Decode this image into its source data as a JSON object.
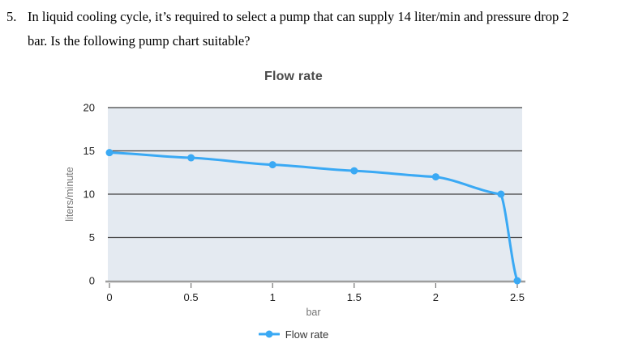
{
  "question": {
    "number": "5.",
    "lines": [
      "In liquid cooling cycle, it’s required to select a pump that can supply 14 liter/min and pressure drop 2",
      "bar. Is the following pump chart suitable?"
    ]
  },
  "chart": {
    "title": "Flow rate",
    "legend": [
      {
        "label": "Flow rate",
        "color": "#3aa9f4"
      }
    ]
  },
  "chart_data": {
    "type": "line",
    "title": "Flow rate",
    "xlabel": "bar",
    "ylabel": "liters/minute",
    "x": [
      0,
      0.5,
      1,
      1.5,
      2,
      2.4,
      2.5
    ],
    "series": [
      {
        "name": "Flow rate",
        "values": [
          14.8,
          14.2,
          13.4,
          12.7,
          12,
          10,
          0
        ]
      }
    ],
    "xlim": [
      0,
      2.5
    ],
    "ylim": [
      0,
      20
    ],
    "x_ticks": [
      0,
      0.5,
      1,
      1.5,
      2,
      2.5
    ],
    "y_ticks": [
      0,
      5,
      10,
      15,
      20
    ],
    "grid": true,
    "legend_position": "bottom",
    "colors": {
      "line": "#3aa9f4",
      "plot_bg": "#e4eaf1",
      "gridline": "#424242",
      "axis_line": "#9e9e9e",
      "tick": "#757575"
    }
  }
}
